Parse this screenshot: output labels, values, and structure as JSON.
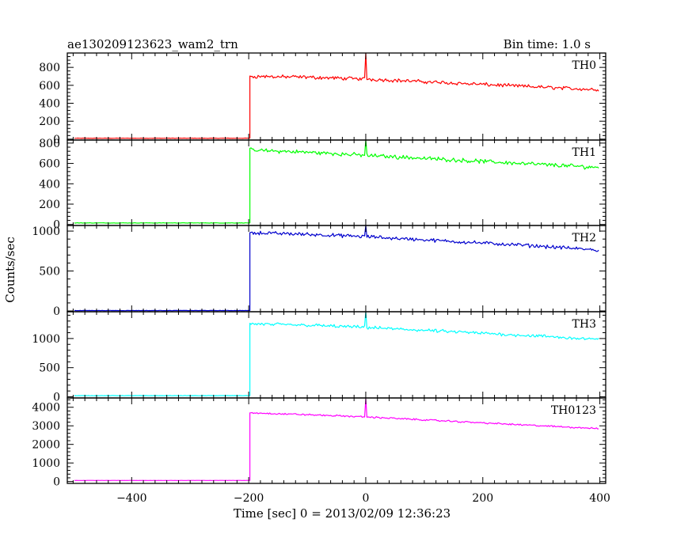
{
  "header": {
    "title": "ae130209123623_wam2_trn",
    "bin_time": "Bin time: 1.0 s"
  },
  "chart_data": {
    "type": "line",
    "xlabel": "Time [sec] 0 = 2013/02/09 12:36:23",
    "ylabel": "Counts/sec",
    "xlim": [
      -510,
      410
    ],
    "x_ticks": [
      -400,
      -200,
      0,
      200,
      400
    ],
    "grid": false,
    "shared_x": true,
    "panels": [
      {
        "name": "TH0",
        "color": "#ff0000",
        "ylim": [
          -10,
          960
        ],
        "y_ticks": [
          0,
          200,
          400,
          600,
          800
        ],
        "background_level": 10,
        "onset_time": -198,
        "burst_profile": {
          "x": [
            -198,
            -100,
            0,
            100,
            200,
            300,
            400
          ],
          "y": [
            700,
            690,
            670,
            640,
            610,
            580,
            550
          ]
        },
        "noise_amplitude": 25,
        "spike": {
          "x": 0,
          "y": 960
        }
      },
      {
        "name": "TH1",
        "color": "#00ff00",
        "ylim": [
          -10,
          830
        ],
        "y_ticks": [
          0,
          200,
          400,
          600,
          800
        ],
        "background_level": 15,
        "onset_time": -198,
        "burst_profile": {
          "x": [
            -198,
            -100,
            0,
            100,
            200,
            300,
            400
          ],
          "y": [
            730,
            710,
            680,
            650,
            620,
            590,
            560
          ]
        },
        "noise_amplitude": 25,
        "spike": {
          "x": 0,
          "y": 830
        }
      },
      {
        "name": "TH2",
        "color": "#0000cd",
        "ylim": [
          -10,
          1070
        ],
        "y_ticks": [
          0,
          500,
          1000
        ],
        "background_level": 5,
        "onset_time": -198,
        "burst_profile": {
          "x": [
            -198,
            -100,
            0,
            100,
            200,
            300,
            400
          ],
          "y": [
            980,
            960,
            930,
            890,
            850,
            810,
            760
          ]
        },
        "noise_amplitude": 28,
        "spike": {
          "x": 0,
          "y": 1070
        }
      },
      {
        "name": "TH3",
        "color": "#00ffff",
        "ylim": [
          -20,
          1460
        ],
        "y_ticks": [
          0,
          500,
          1000
        ],
        "background_level": 20,
        "onset_time": -198,
        "burst_profile": {
          "x": [
            -198,
            -100,
            0,
            100,
            200,
            300,
            400
          ],
          "y": [
            1250,
            1230,
            1190,
            1140,
            1090,
            1040,
            980
          ]
        },
        "noise_amplitude": 35,
        "spike": {
          "x": 0,
          "y": 1460
        }
      },
      {
        "name": "TH0123",
        "color": "#ff00ff",
        "ylim": [
          -100,
          4500
        ],
        "y_ticks": [
          0,
          1000,
          2000,
          3000,
          4000
        ],
        "background_level": 60,
        "onset_time": -198,
        "burst_profile": {
          "x": [
            -198,
            -100,
            0,
            100,
            200,
            300,
            400
          ],
          "y": [
            3700,
            3600,
            3480,
            3320,
            3160,
            3000,
            2850
          ]
        },
        "noise_amplitude": 55,
        "spike": {
          "x": 0,
          "y": 4450
        }
      }
    ]
  }
}
